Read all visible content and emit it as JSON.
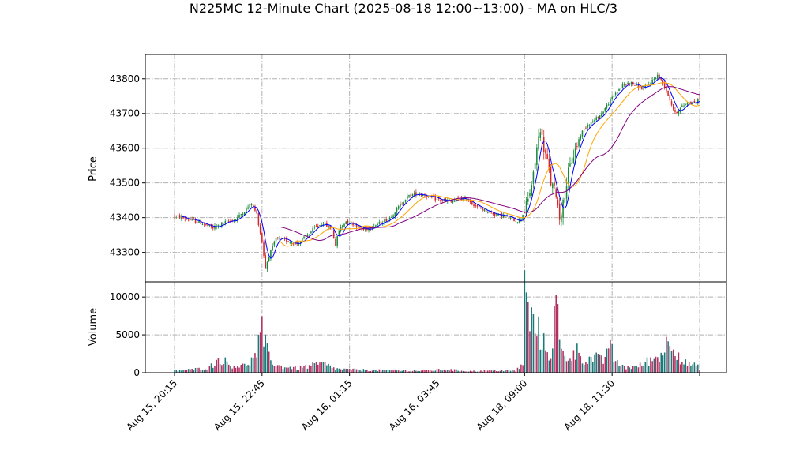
{
  "title": "N225MC 12-Minute Chart (2025-08-18 12:00~13:00) - MA on HLC/3",
  "colors": {
    "up": "#1a8a3a",
    "down": "#d62728",
    "vol_up": "#1a7a7a",
    "vol_down": "#b03060",
    "ma_short": "#0000ff",
    "ma_mid": "#ffa500",
    "ma_long": "#800080",
    "grid": "#b0b0b0"
  },
  "chart_data": {
    "type": "candlestick",
    "grid": true,
    "price_panel": {
      "ylabel": "Price",
      "ylim": [
        43215,
        43870
      ],
      "yticks": [
        43300,
        43400,
        43500,
        43600,
        43700,
        43800
      ]
    },
    "volume_panel": {
      "ylabel": "Volume",
      "ylim": [
        0,
        12000
      ],
      "yticks": [
        0,
        5000,
        10000
      ]
    },
    "xticks": [
      {
        "index": 0,
        "label": "Aug 15, 20:15"
      },
      {
        "index": 50,
        "label": "Aug 15, 22:45"
      },
      {
        "index": 100,
        "label": "Aug 16, 01:15"
      },
      {
        "index": 150,
        "label": "Aug 16, 03:45"
      },
      {
        "index": 200,
        "label": "Aug 18, 09:00"
      },
      {
        "index": 250,
        "label": "Aug 18, 11:30"
      },
      {
        "index": 300,
        "label": ""
      }
    ],
    "num_bars": 301,
    "price_anchors": [
      [
        0,
        43405
      ],
      [
        8,
        43395
      ],
      [
        15,
        43385
      ],
      [
        22,
        43370
      ],
      [
        28,
        43385
      ],
      [
        35,
        43395
      ],
      [
        40,
        43420
      ],
      [
        44,
        43440
      ],
      [
        47,
        43410
      ],
      [
        50,
        43330
      ],
      [
        52,
        43255
      ],
      [
        54,
        43290
      ],
      [
        58,
        43340
      ],
      [
        63,
        43335
      ],
      [
        70,
        43325
      ],
      [
        75,
        43345
      ],
      [
        80,
        43370
      ],
      [
        85,
        43385
      ],
      [
        90,
        43365
      ],
      [
        92,
        43320
      ],
      [
        94,
        43365
      ],
      [
        98,
        43390
      ],
      [
        103,
        43380
      ],
      [
        108,
        43365
      ],
      [
        113,
        43375
      ],
      [
        118,
        43385
      ],
      [
        123,
        43400
      ],
      [
        128,
        43430
      ],
      [
        133,
        43460
      ],
      [
        138,
        43470
      ],
      [
        143,
        43465
      ],
      [
        148,
        43455
      ],
      [
        153,
        43450
      ],
      [
        158,
        43445
      ],
      [
        163,
        43455
      ],
      [
        168,
        43450
      ],
      [
        173,
        43430
      ],
      [
        178,
        43420
      ],
      [
        183,
        43410
      ],
      [
        188,
        43405
      ],
      [
        193,
        43395
      ],
      [
        197,
        43390
      ],
      [
        200,
        43420
      ],
      [
        202,
        43450
      ],
      [
        205,
        43520
      ],
      [
        207,
        43600
      ],
      [
        209,
        43660
      ],
      [
        211,
        43600
      ],
      [
        213,
        43560
      ],
      [
        215,
        43500
      ],
      [
        218,
        43470
      ],
      [
        220,
        43400
      ],
      [
        222,
        43440
      ],
      [
        225,
        43530
      ],
      [
        228,
        43580
      ],
      [
        232,
        43640
      ],
      [
        236,
        43670
      ],
      [
        240,
        43680
      ],
      [
        244,
        43700
      ],
      [
        248,
        43730
      ],
      [
        252,
        43760
      ],
      [
        256,
        43780
      ],
      [
        260,
        43790
      ],
      [
        264,
        43780
      ],
      [
        268,
        43770
      ],
      [
        272,
        43790
      ],
      [
        276,
        43810
      ],
      [
        280,
        43780
      ],
      [
        283,
        43740
      ],
      [
        286,
        43700
      ],
      [
        290,
        43720
      ],
      [
        294,
        43735
      ],
      [
        298,
        43730
      ],
      [
        300,
        43745
      ]
    ],
    "volume_anchors": [
      [
        0,
        300
      ],
      [
        10,
        400
      ],
      [
        20,
        700
      ],
      [
        26,
        1900
      ],
      [
        32,
        1000
      ],
      [
        40,
        900
      ],
      [
        46,
        2000
      ],
      [
        50,
        5200
      ],
      [
        53,
        2700
      ],
      [
        58,
        900
      ],
      [
        70,
        600
      ],
      [
        78,
        900
      ],
      [
        85,
        1200
      ],
      [
        92,
        500
      ],
      [
        100,
        400
      ],
      [
        120,
        300
      ],
      [
        140,
        250
      ],
      [
        150,
        350
      ],
      [
        155,
        400
      ],
      [
        170,
        200
      ],
      [
        185,
        300
      ],
      [
        195,
        250
      ],
      [
        199,
        1200
      ],
      [
        200,
        10500
      ],
      [
        203,
        7000
      ],
      [
        206,
        6000
      ],
      [
        209,
        5000
      ],
      [
        212,
        3000
      ],
      [
        215,
        2500
      ],
      [
        218,
        9000
      ],
      [
        221,
        2500
      ],
      [
        225,
        2000
      ],
      [
        230,
        2800
      ],
      [
        235,
        1600
      ],
      [
        240,
        2000
      ],
      [
        245,
        1500
      ],
      [
        248,
        4000
      ],
      [
        252,
        1300
      ],
      [
        258,
        700
      ],
      [
        265,
        800
      ],
      [
        270,
        1500
      ],
      [
        276,
        2000
      ],
      [
        284,
        4600
      ],
      [
        290,
        1400
      ],
      [
        296,
        1000
      ],
      [
        300,
        700
      ]
    ],
    "moving_averages": [
      {
        "name": "",
        "period": 5,
        "start": 0,
        "color_key": "ma_short"
      },
      {
        "name": "",
        "period": 15,
        "start": 60,
        "color_key": "ma_mid"
      },
      {
        "name": "",
        "period": 35,
        "start": 60,
        "color_key": "ma_long"
      }
    ]
  }
}
